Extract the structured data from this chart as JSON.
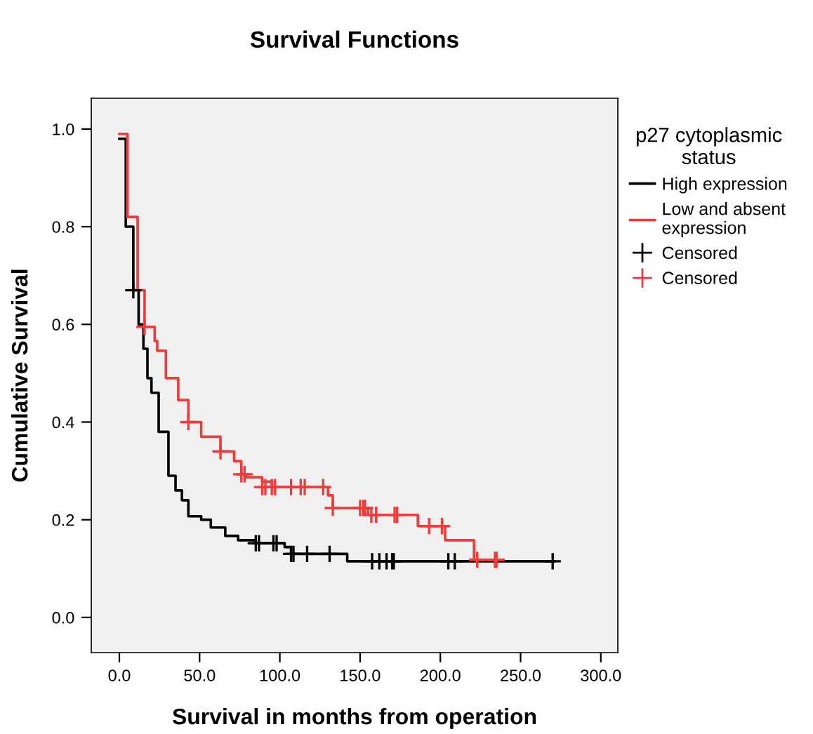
{
  "chart_data": {
    "type": "step",
    "title": "Survival Functions",
    "xlabel": "Survival in months from operation",
    "ylabel": "Cumulative Survival",
    "legend_title": "p27 cytoplasmic\nstatus",
    "legend": "right",
    "grid": false,
    "xlim": [
      -17.5,
      310.6
    ],
    "ylim": [
      -0.072,
      1.063
    ],
    "xticks": [
      {
        "value": 0,
        "label": "0.0"
      },
      {
        "value": 50,
        "label": "50.0"
      },
      {
        "value": 100,
        "label": "100.0"
      },
      {
        "value": 150,
        "label": "150.0"
      },
      {
        "value": 200,
        "label": "200.0"
      },
      {
        "value": 250,
        "label": "250.0"
      },
      {
        "value": 300,
        "label": "300.0"
      }
    ],
    "yticks": [
      {
        "value": 0,
        "label": "0.0"
      },
      {
        "value": 0.2,
        "label": "0.2"
      },
      {
        "value": 0.4,
        "label": "0.4"
      },
      {
        "value": 0.6,
        "label": "0.6"
      },
      {
        "value": 0.8,
        "label": "0.8"
      },
      {
        "value": 1,
        "label": "1.0"
      }
    ],
    "series": [
      {
        "name": "High expression",
        "color": "#000000",
        "x": [
          0,
          4,
          8.7,
          12,
          15,
          17.5,
          20,
          24.5,
          30.6,
          35,
          39,
          43,
          51,
          57,
          66,
          74,
          85,
          103,
          107,
          142,
          271
        ],
        "values": [
          0.98,
          0.8,
          0.67,
          0.6,
          0.55,
          0.49,
          0.46,
          0.38,
          0.29,
          0.26,
          0.24,
          0.207,
          0.2,
          0.184,
          0.167,
          0.158,
          0.152,
          0.144,
          0.13,
          0.115,
          0.115
        ]
      },
      {
        "name": "Low and absent\nexpression",
        "color": "#ee3b3b",
        "x": [
          0,
          5,
          11.4,
          15.7,
          22,
          23.6,
          29,
          36.7,
          43,
          51,
          63,
          71.5,
          76,
          79,
          89,
          95,
          127,
          130,
          133,
          155,
          186,
          203,
          221,
          235
        ],
        "values": [
          0.99,
          0.82,
          0.67,
          0.595,
          0.566,
          0.546,
          0.49,
          0.445,
          0.4,
          0.37,
          0.34,
          0.32,
          0.293,
          0.287,
          0.278,
          0.267,
          0.267,
          0.25,
          0.224,
          0.21,
          0.187,
          0.158,
          0.118,
          0.118
        ]
      },
      {
        "name": "Censored",
        "type": "scatter",
        "marker": "cross",
        "color": "#000000",
        "x": [
          8.7,
          85,
          87,
          96,
          98,
          107,
          108.5,
          117,
          131,
          157.5,
          162,
          166.5,
          170,
          171,
          205,
          209,
          270
        ],
        "values": [
          0.67,
          0.152,
          0.152,
          0.152,
          0.152,
          0.13,
          0.13,
          0.13,
          0.13,
          0.115,
          0.115,
          0.115,
          0.115,
          0.115,
          0.115,
          0.115,
          0.115
        ]
      },
      {
        "name": "Censored",
        "type": "scatter",
        "marker": "cross",
        "color": "#ee3b3b",
        "x": [
          15.7,
          43,
          63,
          76,
          78,
          89,
          91,
          95,
          97,
          107,
          113,
          115.5,
          127,
          133,
          150,
          152,
          153,
          157,
          160,
          171.5,
          173,
          193,
          201,
          223,
          234,
          235
        ],
        "values": [
          0.595,
          0.4,
          0.34,
          0.293,
          0.293,
          0.267,
          0.267,
          0.267,
          0.267,
          0.267,
          0.267,
          0.267,
          0.267,
          0.224,
          0.224,
          0.224,
          0.224,
          0.21,
          0.21,
          0.21,
          0.21,
          0.187,
          0.187,
          0.118,
          0.118,
          0.118
        ]
      }
    ]
  }
}
